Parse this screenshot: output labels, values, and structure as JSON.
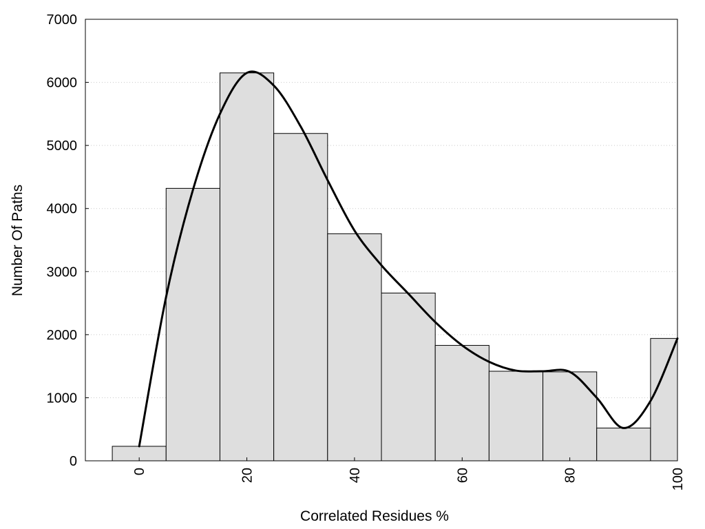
{
  "chart_data": {
    "type": "bar",
    "title": "",
    "xlabel": "Correlated Residues %",
    "ylabel": "Number Of Paths",
    "categories": [
      "0",
      "10",
      "20",
      "30",
      "40",
      "50",
      "60",
      "70",
      "80",
      "90",
      "100"
    ],
    "x": [
      0,
      10,
      20,
      30,
      40,
      50,
      60,
      70,
      80,
      90,
      100
    ],
    "values": [
      230,
      4320,
      6150,
      5190,
      3600,
      2660,
      1830,
      1420,
      1410,
      520,
      1940
    ],
    "bin_width": 10,
    "xlim": [
      -10,
      100
    ],
    "ylim": [
      0,
      7000
    ],
    "xticks": [
      0,
      20,
      40,
      60,
      80,
      100
    ],
    "yticks": [
      0,
      1000,
      2000,
      3000,
      4000,
      5000,
      6000,
      7000
    ],
    "grid": "horizontal dotted",
    "bar_color": "#dedede",
    "curve": {
      "type": "line",
      "x": [
        0,
        5,
        10,
        15,
        20,
        25,
        30,
        35,
        40,
        45,
        50,
        55,
        60,
        65,
        70,
        75,
        80,
        85,
        90,
        95,
        100
      ],
      "y": [
        230,
        2600,
        4300,
        5500,
        6150,
        5950,
        5300,
        4450,
        3650,
        3100,
        2650,
        2200,
        1830,
        1570,
        1430,
        1420,
        1410,
        1000,
        520,
        950,
        1940
      ]
    }
  }
}
